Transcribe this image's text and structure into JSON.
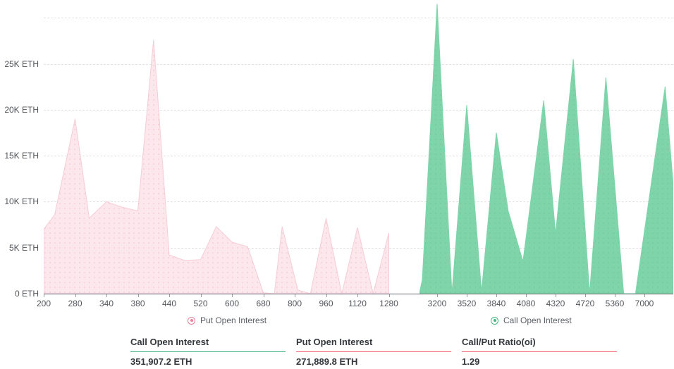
{
  "chart_data": {
    "type": "area",
    "title": "",
    "unit": "ETH",
    "y_axis": {
      "ylim": [
        0,
        30
      ],
      "unit": "K ETH",
      "grid": "dashed-horizontal",
      "gridline_values": [
        5,
        10,
        15,
        20,
        25,
        30
      ],
      "ticks": [
        {
          "v": 0,
          "label": "0 ETH"
        },
        {
          "v": 5,
          "label": "5K ETH"
        },
        {
          "v": 10,
          "label": "10K ETH"
        },
        {
          "v": 15,
          "label": "15K ETH"
        },
        {
          "v": 20,
          "label": "20K ETH"
        },
        {
          "v": 25,
          "label": "25K ETH"
        }
      ]
    },
    "series": [
      {
        "name": "Put Open Interest",
        "fill": "#fce7ec",
        "dot": "#f4c8d4",
        "stroke": "#f6ccd7",
        "legend_color": "#e8849b",
        "x_labels": [
          "200",
          "280",
          "340",
          "380",
          "440",
          "520",
          "600",
          "680",
          "800",
          "960",
          "1120",
          "1280"
        ],
        "points_unit": "K ETH (x = category index on strike axis)",
        "points": [
          [
            0,
            7.0
          ],
          [
            0.35,
            8.6
          ],
          [
            1,
            19.0
          ],
          [
            1.45,
            8.2
          ],
          [
            2,
            10.0
          ],
          [
            2.5,
            9.4
          ],
          [
            3,
            9.0
          ],
          [
            3.5,
            27.6
          ],
          [
            4,
            4.2
          ],
          [
            4.5,
            3.6
          ],
          [
            5,
            3.7
          ],
          [
            5.5,
            7.3
          ],
          [
            6,
            5.6
          ],
          [
            6.5,
            5.1
          ],
          [
            7,
            0.1
          ],
          [
            7.35,
            0.0
          ],
          [
            7.6,
            7.3
          ],
          [
            8.1,
            0.4
          ],
          [
            8.5,
            0.0
          ],
          [
            9,
            8.2
          ],
          [
            9.5,
            0.0
          ],
          [
            10,
            7.2
          ],
          [
            10.5,
            0.0
          ],
          [
            11,
            6.6
          ]
        ]
      },
      {
        "name": "Call Open Interest",
        "fill": "#7fd4a9",
        "dot": "#73cb9f",
        "stroke": "#7fd4a9",
        "legend_color": "#45b67f",
        "x_labels": [
          "3200",
          "3520",
          "3840",
          "4080",
          "4320",
          "4720",
          "5360",
          "7000"
        ],
        "points_unit": "K ETH (x = category index on strike axis)",
        "points": [
          [
            -0.6,
            0.0
          ],
          [
            -0.5,
            1.5
          ],
          [
            0,
            31.5
          ],
          [
            0.5,
            0.0
          ],
          [
            1,
            20.5
          ],
          [
            1.5,
            0.2
          ],
          [
            2,
            17.5
          ],
          [
            2.4,
            9.0
          ],
          [
            2.9,
            3.5
          ],
          [
            3.6,
            21.0
          ],
          [
            4.0,
            6.5
          ],
          [
            4.6,
            25.5
          ],
          [
            5.15,
            0.0
          ],
          [
            5.7,
            23.5
          ],
          [
            6.3,
            0.0
          ],
          [
            6.7,
            0.0
          ],
          [
            7.7,
            22.5
          ],
          [
            7.97,
            12.0
          ]
        ]
      }
    ]
  },
  "legend": {
    "put_label": "Put Open Interest",
    "call_label": "Call Open Interest"
  },
  "stats": [
    {
      "label": "Call Open Interest",
      "value": "351,907.2 ETH",
      "accent": "#4db482"
    },
    {
      "label": "Put Open Interest",
      "value": "271,889.8 ETH",
      "accent": "#f5697b"
    },
    {
      "label": "Call/Put Ratio(oi)",
      "value": "1.29",
      "accent": "#f5697b"
    }
  ]
}
